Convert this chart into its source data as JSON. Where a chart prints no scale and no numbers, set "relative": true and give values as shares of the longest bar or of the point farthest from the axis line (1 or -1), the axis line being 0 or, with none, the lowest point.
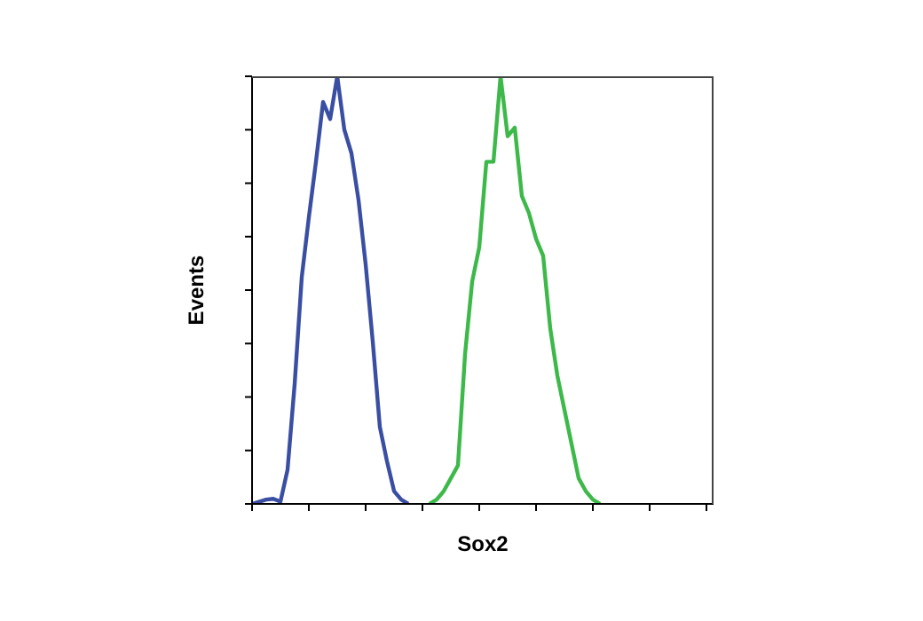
{
  "chart_data": {
    "type": "line",
    "xlabel": "Sox2",
    "ylabel": "Events",
    "relative": true,
    "marker": "none",
    "line_style": "solid",
    "categories": [
      null,
      null,
      null,
      null,
      null,
      null,
      null,
      null,
      null,
      null,
      null,
      null,
      null,
      null,
      null,
      null,
      null,
      null,
      null,
      null,
      null,
      null,
      null,
      null,
      null,
      null,
      null,
      null,
      null,
      null,
      null,
      null,
      null,
      null,
      null,
      null,
      null,
      null,
      null,
      null,
      null,
      null,
      null,
      null,
      null,
      null,
      null,
      null,
      null,
      null,
      null,
      null,
      null,
      null,
      null,
      null,
      null,
      null,
      null,
      null,
      null,
      null,
      null,
      null,
      null,
      null
    ],
    "series": [
      {
        "color": "#3a4fa3",
        "values": [
          0,
          0.005,
          0.01,
          0.012,
          0.005,
          0.08,
          0.28,
          0.53,
          0.67,
          0.8,
          0.94,
          0.9,
          1.0,
          0.875,
          0.82,
          0.71,
          0.56,
          0.38,
          0.18,
          0.1,
          0.03,
          0.01,
          0,
          null,
          null,
          null,
          null,
          null,
          null,
          null,
          null,
          null,
          null,
          null,
          null,
          null,
          null,
          null,
          null,
          null,
          null,
          null,
          null,
          null,
          null,
          null,
          null,
          null,
          null,
          null,
          null,
          null,
          null,
          null,
          null,
          null,
          null,
          null,
          null,
          null,
          null,
          null,
          null,
          null,
          null,
          null
        ]
      },
      {
        "color": "#3db94a",
        "values": [
          null,
          null,
          null,
          null,
          null,
          null,
          null,
          null,
          null,
          null,
          null,
          null,
          null,
          null,
          null,
          null,
          null,
          null,
          null,
          null,
          null,
          null,
          null,
          null,
          null,
          0,
          0.01,
          0.03,
          0.06,
          0.09,
          0.35,
          0.52,
          0.6,
          0.8,
          0.8,
          1.0,
          0.86,
          0.88,
          0.72,
          0.68,
          0.62,
          0.58,
          0.41,
          0.3,
          0.22,
          0.14,
          0.06,
          0.03,
          0.01,
          0,
          null,
          null,
          null,
          null,
          null,
          null,
          null,
          null,
          null,
          null,
          null,
          null,
          null,
          null,
          null,
          null
        ]
      }
    ]
  }
}
